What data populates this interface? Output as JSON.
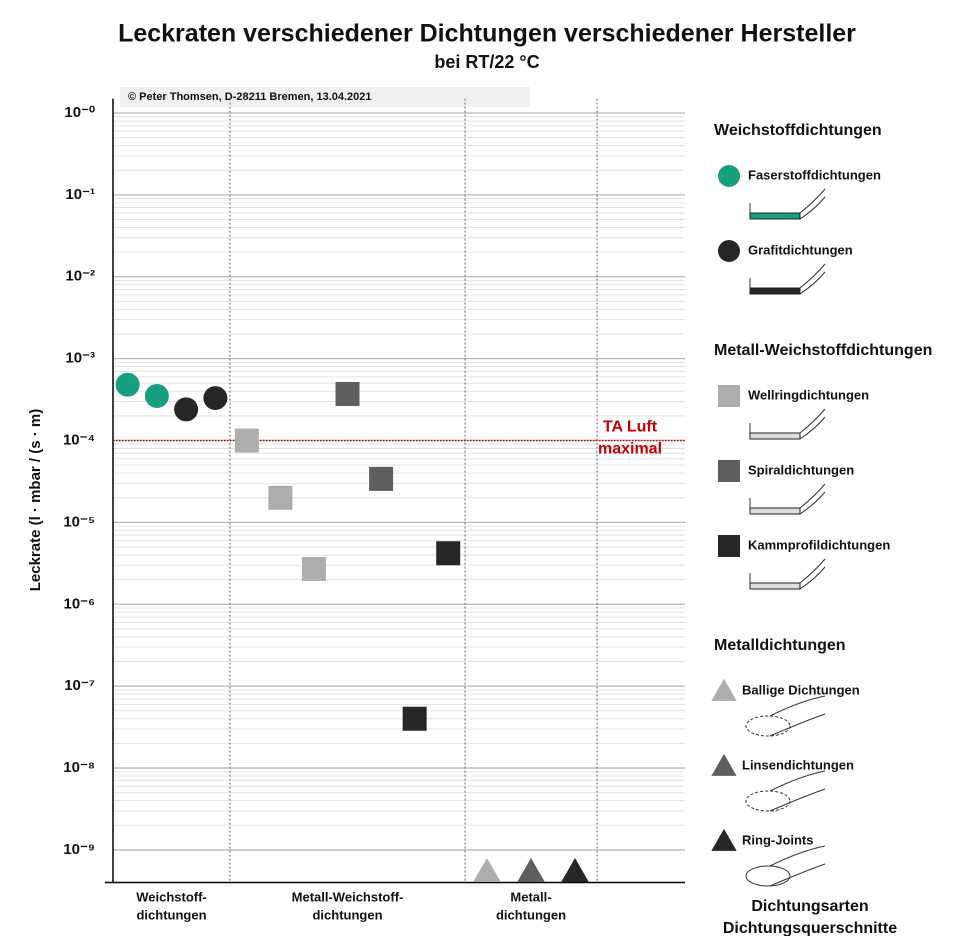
{
  "chart_data": {
    "type": "scatter",
    "title": "Leckraten verschiedener Dichtungen verschiedener Hersteller",
    "subtitle": "bei RT/22 °C",
    "copyright": "© Peter Thomsen, D-28211 Bremen, 13.04.2021",
    "ylabel": "Leckrate (l · mbar / (s · m)",
    "log_y": true,
    "grid": true,
    "ylim": [
      4e-10,
      1.5
    ],
    "yticks": [
      {
        "value": 1,
        "label": "10⁻⁰"
      },
      {
        "value": 0.1,
        "label": "10⁻¹"
      },
      {
        "value": 0.01,
        "label": "10⁻²"
      },
      {
        "value": 0.001,
        "label": "10⁻³"
      },
      {
        "value": 0.0001,
        "label": "10⁻⁴"
      },
      {
        "value": 1e-05,
        "label": "10⁻⁵"
      },
      {
        "value": 1e-06,
        "label": "10⁻⁶"
      },
      {
        "value": 1e-07,
        "label": "10⁻⁷"
      },
      {
        "value": 1e-08,
        "label": "10⁻⁸"
      },
      {
        "value": 1e-09,
        "label": "10⁻⁹"
      }
    ],
    "reference_line": {
      "value": 0.0001,
      "color": "#c00000",
      "label": [
        "TA Luft",
        "maximal"
      ]
    },
    "groups": [
      {
        "label": [
          "Weichstoff-",
          "dichtungen"
        ],
        "legend_title": "Weichstoffdichtungen",
        "series": [
          {
            "name": "Faserstoffdichtungen",
            "marker": "circle",
            "color": "#17a07f",
            "values": [
              0.00048,
              0.00035
            ]
          },
          {
            "name": "Grafitdichtungen",
            "marker": "circle",
            "color": "#262626",
            "values": [
              0.00024,
              0.00033
            ]
          }
        ]
      },
      {
        "label": [
          "Metall-Weichstoff-",
          "dichtungen"
        ],
        "legend_title": "Metall-Weichstoffdichtungen",
        "series": [
          {
            "name": "Wellringdichtungen",
            "marker": "square",
            "color": "#adadad",
            "values": [
              0.0001,
              2e-05,
              2.7e-06
            ]
          },
          {
            "name": "Spiraldichtungen",
            "marker": "square",
            "color": "#5e5e5e",
            "values": [
              0.00037,
              3.4e-05
            ]
          },
          {
            "name": "Kammprofildichtungen",
            "marker": "square",
            "color": "#262626",
            "values": [
              4e-08,
              4.2e-06
            ]
          }
        ]
      },
      {
        "label": [
          "Metall-",
          "dichtungen"
        ],
        "legend_title": "Metalldichtungen",
        "series": [
          {
            "name": "Ballige Dichtungen",
            "marker": "triangle",
            "color": "#adadad",
            "values": [
              5.5e-10
            ]
          },
          {
            "name": "Linsendichtungen",
            "marker": "triangle",
            "color": "#5e5e5e",
            "values": [
              5.5e-10
            ]
          },
          {
            "name": "Ring-Joints",
            "marker": "triangle",
            "color": "#262626",
            "values": [
              5.5e-10
            ]
          }
        ]
      }
    ],
    "footer": [
      "Dichtungsarten",
      "Dichtungsquerschnitte"
    ]
  }
}
